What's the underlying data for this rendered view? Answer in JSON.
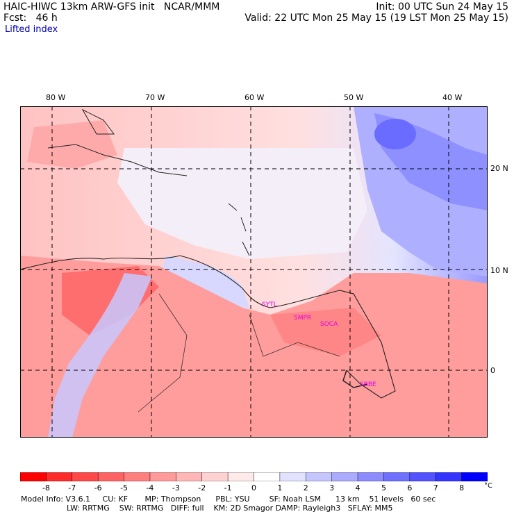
{
  "header": {
    "model": "HAIC-HIWC 13km ARW-GFS init   NCAR/MMM",
    "init": "Init: 00 UTC Sun 24 May 15",
    "fcst": "Fcst:   46 h",
    "valid": "Valid: 22 UTC Mon 25 May 15 (19 LST Mon 25 May 15)",
    "field": "Lifted index"
  },
  "map": {
    "lon_labels": [
      "80 W",
      "70 W",
      "60 W",
      "50 W",
      "40 W"
    ],
    "lat_labels": [
      "20 N",
      "10 N",
      "0"
    ],
    "stations": [
      "SYTL",
      "SMPR",
      "SOCA",
      "SBBE"
    ]
  },
  "colorbar": {
    "labels": [
      "-8",
      "-7",
      "-6",
      "-5",
      "-4",
      "-3",
      "-2",
      "-1",
      "0",
      "1",
      "2",
      "3",
      "4",
      "5",
      "6",
      "7",
      "8"
    ],
    "unit": "°C",
    "colors": [
      "#ff0000",
      "#ff2a2a",
      "#ff4848",
      "#ff6262",
      "#ff7e7e",
      "#ff9a9a",
      "#ffb6b6",
      "#ffd2d2",
      "#ffeaea",
      "#ffffff",
      "#e2e2ff",
      "#c6c6ff",
      "#aaaaff",
      "#8c8cff",
      "#7070ff",
      "#5252ff",
      "#3434ff",
      "#0000ff"
    ]
  },
  "footer": {
    "line1": "Model Info: V3.6.1     CU: KF       MP: Thompson      PBL: YSU        SF: Noah LSM      13 km    51 levels   60 sec",
    "line2": "LW: RRTMG    SW: RRTMG   DIFF: full    KM: 2D Smagor DAMP: Rayleigh3   SFLAY: MM5"
  }
}
